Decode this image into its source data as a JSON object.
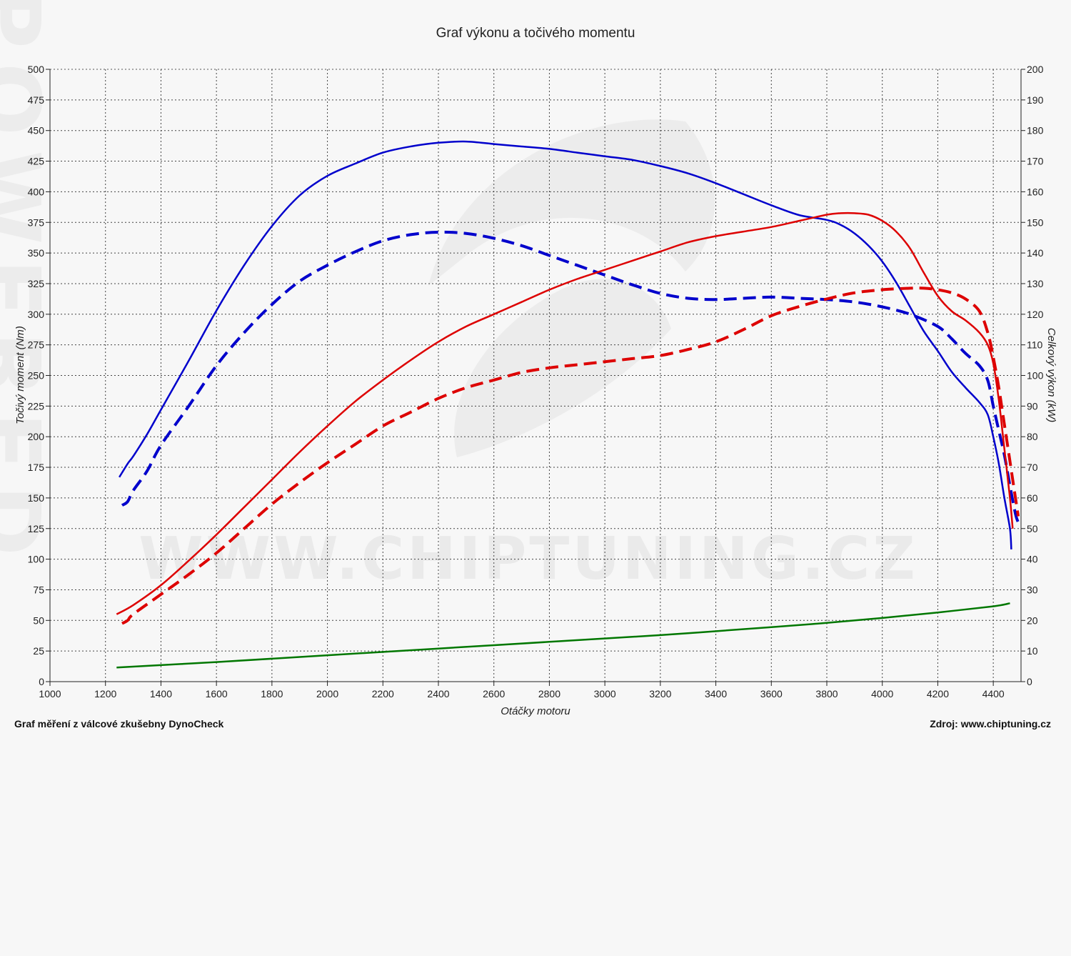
{
  "chart_data": {
    "type": "line",
    "title": "Graf výkonu a točivého momentu",
    "xlabel": "Otáčky motoru",
    "ylabel_left": "Točivý moment (Nm)",
    "ylabel_right": "Celkový výkon (kW)",
    "xlim": [
      1000,
      4500
    ],
    "ylim_left": [
      0,
      500
    ],
    "ylim_right": [
      0,
      200
    ],
    "x_ticks": [
      "1000",
      "1200",
      "1400",
      "1600",
      "1800",
      "2000",
      "2200",
      "2400",
      "2600",
      "2800",
      "3000",
      "3200",
      "3400",
      "3600",
      "3800",
      "4000",
      "4200",
      "4400"
    ],
    "y_ticks_left": [
      "0",
      "25",
      "50",
      "75",
      "100",
      "125",
      "150",
      "175",
      "200",
      "225",
      "250",
      "275",
      "300",
      "325",
      "350",
      "375",
      "400",
      "425",
      "450",
      "475",
      "500"
    ],
    "y_ticks_right": [
      "0",
      "10",
      "20",
      "30",
      "40",
      "50",
      "60",
      "70",
      "80",
      "90",
      "100",
      "110",
      "120",
      "130",
      "140",
      "150",
      "160",
      "170",
      "180",
      "190",
      "200"
    ],
    "grid": true,
    "watermark": "WWW.CHIPTUNING.CZ",
    "side_watermark": "POWERED",
    "series": [
      {
        "axis": "left",
        "color": "#0000cc",
        "style": "solid",
        "x": [
          1250,
          1280,
          1300,
          1350,
          1400,
          1500,
          1600,
          1700,
          1800,
          1900,
          2000,
          2100,
          2200,
          2300,
          2400,
          2500,
          2600,
          2700,
          2800,
          2900,
          3000,
          3100,
          3200,
          3300,
          3400,
          3500,
          3600,
          3700,
          3800,
          3850,
          3900,
          3950,
          4000,
          4050,
          4100,
          4150,
          4200,
          4250,
          4300,
          4350,
          4380,
          4400,
          4420,
          4440,
          4460,
          4465
        ],
        "y": [
          167,
          178,
          184,
          202,
          222,
          262,
          303,
          340,
          372,
          397,
          413,
          423,
          432,
          437,
          440,
          441,
          439,
          437,
          435,
          432,
          429,
          426,
          421,
          415,
          407,
          398,
          389,
          381,
          377,
          373,
          366,
          356,
          343,
          326,
          306,
          286,
          270,
          253,
          240,
          228,
          218,
          200,
          178,
          150,
          125,
          108
        ]
      },
      {
        "axis": "left",
        "color": "#0000cc",
        "style": "dashed",
        "x": [
          1260,
          1280,
          1300,
          1350,
          1400,
          1500,
          1600,
          1700,
          1800,
          1900,
          2000,
          2100,
          2200,
          2300,
          2400,
          2500,
          2600,
          2700,
          2800,
          2900,
          3000,
          3100,
          3200,
          3300,
          3400,
          3500,
          3600,
          3700,
          3800,
          3900,
          4000,
          4100,
          4200,
          4250,
          4300,
          4350,
          4380,
          4400,
          4420,
          4440,
          4460,
          4480,
          4490
        ],
        "y": [
          144,
          147,
          156,
          172,
          193,
          225,
          258,
          285,
          308,
          327,
          340,
          351,
          360,
          365,
          367,
          366,
          362,
          356,
          348,
          340,
          332,
          324,
          317,
          313,
          312,
          313,
          314,
          313,
          312,
          310,
          306,
          300,
          290,
          280,
          268,
          258,
          246,
          225,
          205,
          185,
          160,
          137,
          130
        ]
      },
      {
        "axis": "right",
        "color": "#dd0000",
        "style": "solid",
        "x": [
          1240,
          1300,
          1400,
          1500,
          1600,
          1700,
          1800,
          1900,
          2000,
          2100,
          2200,
          2300,
          2400,
          2500,
          2600,
          2700,
          2800,
          2900,
          3000,
          3100,
          3200,
          3300,
          3400,
          3500,
          3600,
          3700,
          3800,
          3850,
          3900,
          3950,
          4000,
          4050,
          4100,
          4150,
          4200,
          4250,
          4300,
          4350,
          4380,
          4400,
          4420,
          4440,
          4460,
          4470
        ],
        "y": [
          22,
          25,
          31.5,
          39.5,
          48,
          57,
          66,
          75,
          83.5,
          91.5,
          98.5,
          105,
          111,
          116,
          120,
          124,
          128,
          131.5,
          134.5,
          137.5,
          140.5,
          143.5,
          145.5,
          147,
          148.5,
          150.5,
          152.5,
          153,
          153,
          152.5,
          150.5,
          147,
          141.5,
          133.5,
          126,
          121,
          118,
          114,
          110,
          104,
          92,
          76,
          60,
          50
        ]
      },
      {
        "axis": "right",
        "color": "#dd0000",
        "style": "dashed",
        "x": [
          1260,
          1280,
          1300,
          1400,
          1500,
          1600,
          1700,
          1800,
          1900,
          2000,
          2100,
          2200,
          2300,
          2400,
          2500,
          2600,
          2700,
          2800,
          2900,
          3000,
          3100,
          3200,
          3300,
          3400,
          3500,
          3600,
          3700,
          3800,
          3900,
          4000,
          4100,
          4150,
          4200,
          4250,
          4300,
          4350,
          4380,
          4400,
          4420,
          4440,
          4460,
          4480,
          4490
        ],
        "y": [
          19,
          20,
          22,
          28.5,
          35,
          42,
          50,
          58,
          65,
          71.5,
          77.5,
          83.5,
          88,
          92.5,
          96,
          98.5,
          101,
          102.5,
          103.5,
          104.5,
          105.5,
          106.5,
          108.5,
          111,
          115,
          119.5,
          122.5,
          125,
          127,
          128,
          128.5,
          128.5,
          128,
          127,
          125,
          121,
          114,
          106,
          96,
          84,
          72,
          60,
          54
        ]
      },
      {
        "axis": "left",
        "color": "#007700",
        "style": "solid",
        "x": [
          1240,
          1600,
          2000,
          2400,
          2800,
          3200,
          3600,
          3800,
          4000,
          4200,
          4400,
          4460
        ],
        "y": [
          11.5,
          16,
          21.5,
          27,
          32.5,
          38,
          44.5,
          48,
          52,
          56.5,
          61.5,
          64
        ]
      }
    ]
  },
  "footer": {
    "left": "Graf měření z válcové zkušebny DynoCheck",
    "right": "Zdroj: www.chiptuning.cz"
  }
}
